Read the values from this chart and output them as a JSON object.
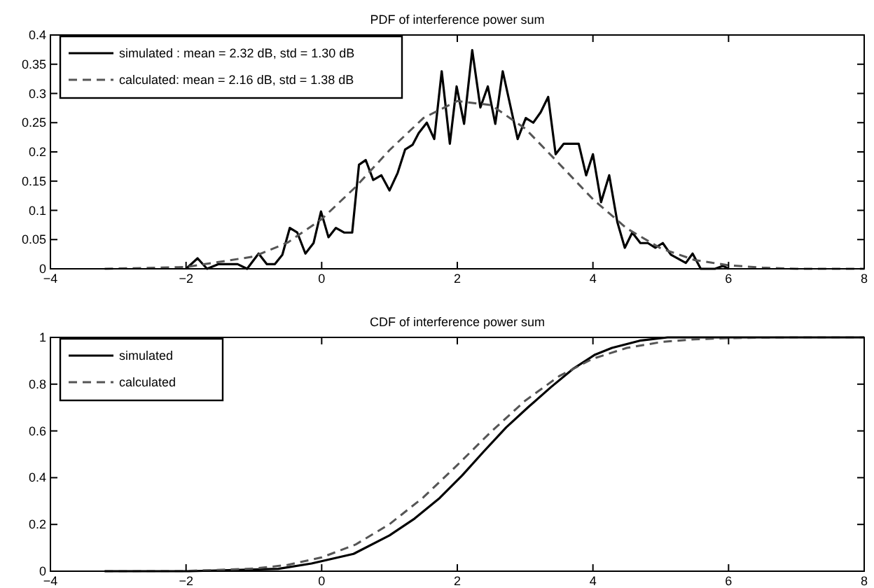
{
  "chart_data": [
    {
      "type": "line",
      "title": "PDF of interference power sum",
      "xlim": [
        -4,
        8
      ],
      "ylim": [
        0,
        0.4
      ],
      "xticks": [
        -4,
        -2,
        0,
        2,
        4,
        6,
        8
      ],
      "yticks": [
        0,
        0.05,
        0.1,
        0.15,
        0.2,
        0.25,
        0.3,
        0.35,
        0.4
      ],
      "legend": "top left",
      "grid": false,
      "series": [
        {
          "name": "simulated : mean = 2.32 dB, std = 1.30 dB",
          "color": "#000000",
          "line_style": "solid",
          "x": [
            -2,
            -1.83,
            -1.69,
            -1.52,
            -1.24,
            -1.1,
            -0.93,
            -0.81,
            -0.69,
            -0.58,
            -0.47,
            -0.36,
            -0.24,
            -0.12,
            -0.01,
            0.1,
            0.21,
            0.33,
            0.45,
            0.55,
            0.65,
            0.76,
            0.88,
            1.0,
            1.12,
            1.23,
            1.34,
            1.43,
            1.55,
            1.66,
            1.77,
            1.89,
            1.99,
            2.1,
            2.22,
            2.34,
            2.45,
            2.56,
            2.67,
            2.89,
            3.01,
            3.12,
            3.23,
            3.34,
            3.45,
            3.57,
            3.79,
            3.9,
            4.0,
            4.12,
            4.24,
            4.36,
            4.47,
            4.58,
            4.7,
            4.81,
            4.92,
            5.03,
            5.15,
            5.37,
            5.47,
            5.59,
            5.8,
            5.92,
            6.0
          ],
          "values": [
            0,
            0.018,
            0,
            0.008,
            0.008,
            0,
            0.026,
            0.008,
            0.008,
            0.024,
            0.07,
            0.062,
            0.026,
            0.044,
            0.098,
            0.054,
            0.07,
            0.062,
            0.062,
            0.178,
            0.186,
            0.152,
            0.16,
            0.134,
            0.164,
            0.204,
            0.212,
            0.232,
            0.25,
            0.222,
            0.338,
            0.214,
            0.312,
            0.248,
            0.374,
            0.276,
            0.312,
            0.248,
            0.338,
            0.222,
            0.258,
            0.25,
            0.268,
            0.294,
            0.196,
            0.214,
            0.214,
            0.16,
            0.196,
            0.114,
            0.16,
            0.08,
            0.036,
            0.062,
            0.044,
            0.044,
            0.036,
            0.044,
            0.024,
            0.01,
            0.026,
            0,
            0,
            0.005,
            0
          ]
        },
        {
          "name": "calculated: mean = 2.16 dB, std = 1.38 dB",
          "color": "#555555",
          "line_style": "dashed",
          "x": [
            -3.2,
            -2,
            -1,
            -0.5,
            0,
            0.5,
            1,
            1.5,
            2,
            2.5,
            3,
            3.5,
            4,
            4.5,
            5,
            5.5,
            6,
            6.5,
            7,
            8
          ],
          "values": [
            0,
            0.003,
            0.021,
            0.045,
            0.085,
            0.14,
            0.203,
            0.258,
            0.287,
            0.28,
            0.24,
            0.18,
            0.119,
            0.069,
            0.035,
            0.015,
            0.006,
            0.002,
            0,
            0
          ]
        }
      ]
    },
    {
      "type": "line",
      "title": "CDF of interference power sum",
      "xlim": [
        -4,
        8
      ],
      "ylim": [
        0,
        1
      ],
      "xticks": [
        -4,
        -2,
        0,
        2,
        4,
        6,
        8
      ],
      "yticks": [
        0,
        0.2,
        0.4,
        0.6,
        0.8,
        1
      ],
      "legend": "top left",
      "grid": false,
      "series": [
        {
          "name": "simulated",
          "color": "#000000",
          "line_style": "solid",
          "x": [
            -3.2,
            -1.95,
            -0.64,
            -0.15,
            0.47,
            1.0,
            1.37,
            1.74,
            2.07,
            2.39,
            2.72,
            3.05,
            3.38,
            3.7,
            4.03,
            4.28,
            4.69,
            5.1,
            8
          ],
          "values": [
            0,
            0,
            0.01,
            0.033,
            0.074,
            0.153,
            0.225,
            0.313,
            0.409,
            0.512,
            0.615,
            0.703,
            0.787,
            0.864,
            0.926,
            0.955,
            0.986,
            1,
            1
          ]
        },
        {
          "name": "calculated",
          "color": "#555555",
          "line_style": "dashed",
          "x": [
            -3.2,
            -2,
            -1,
            -0.5,
            0,
            0.5,
            1,
            1.5,
            2,
            2.5,
            3,
            3.5,
            4,
            4.5,
            5,
            5.5,
            6,
            7,
            8
          ],
          "values": [
            0,
            0.001,
            0.011,
            0.027,
            0.059,
            0.114,
            0.201,
            0.316,
            0.454,
            0.597,
            0.729,
            0.834,
            0.909,
            0.955,
            0.98,
            0.992,
            0.997,
            1,
            1
          ]
        }
      ]
    }
  ]
}
